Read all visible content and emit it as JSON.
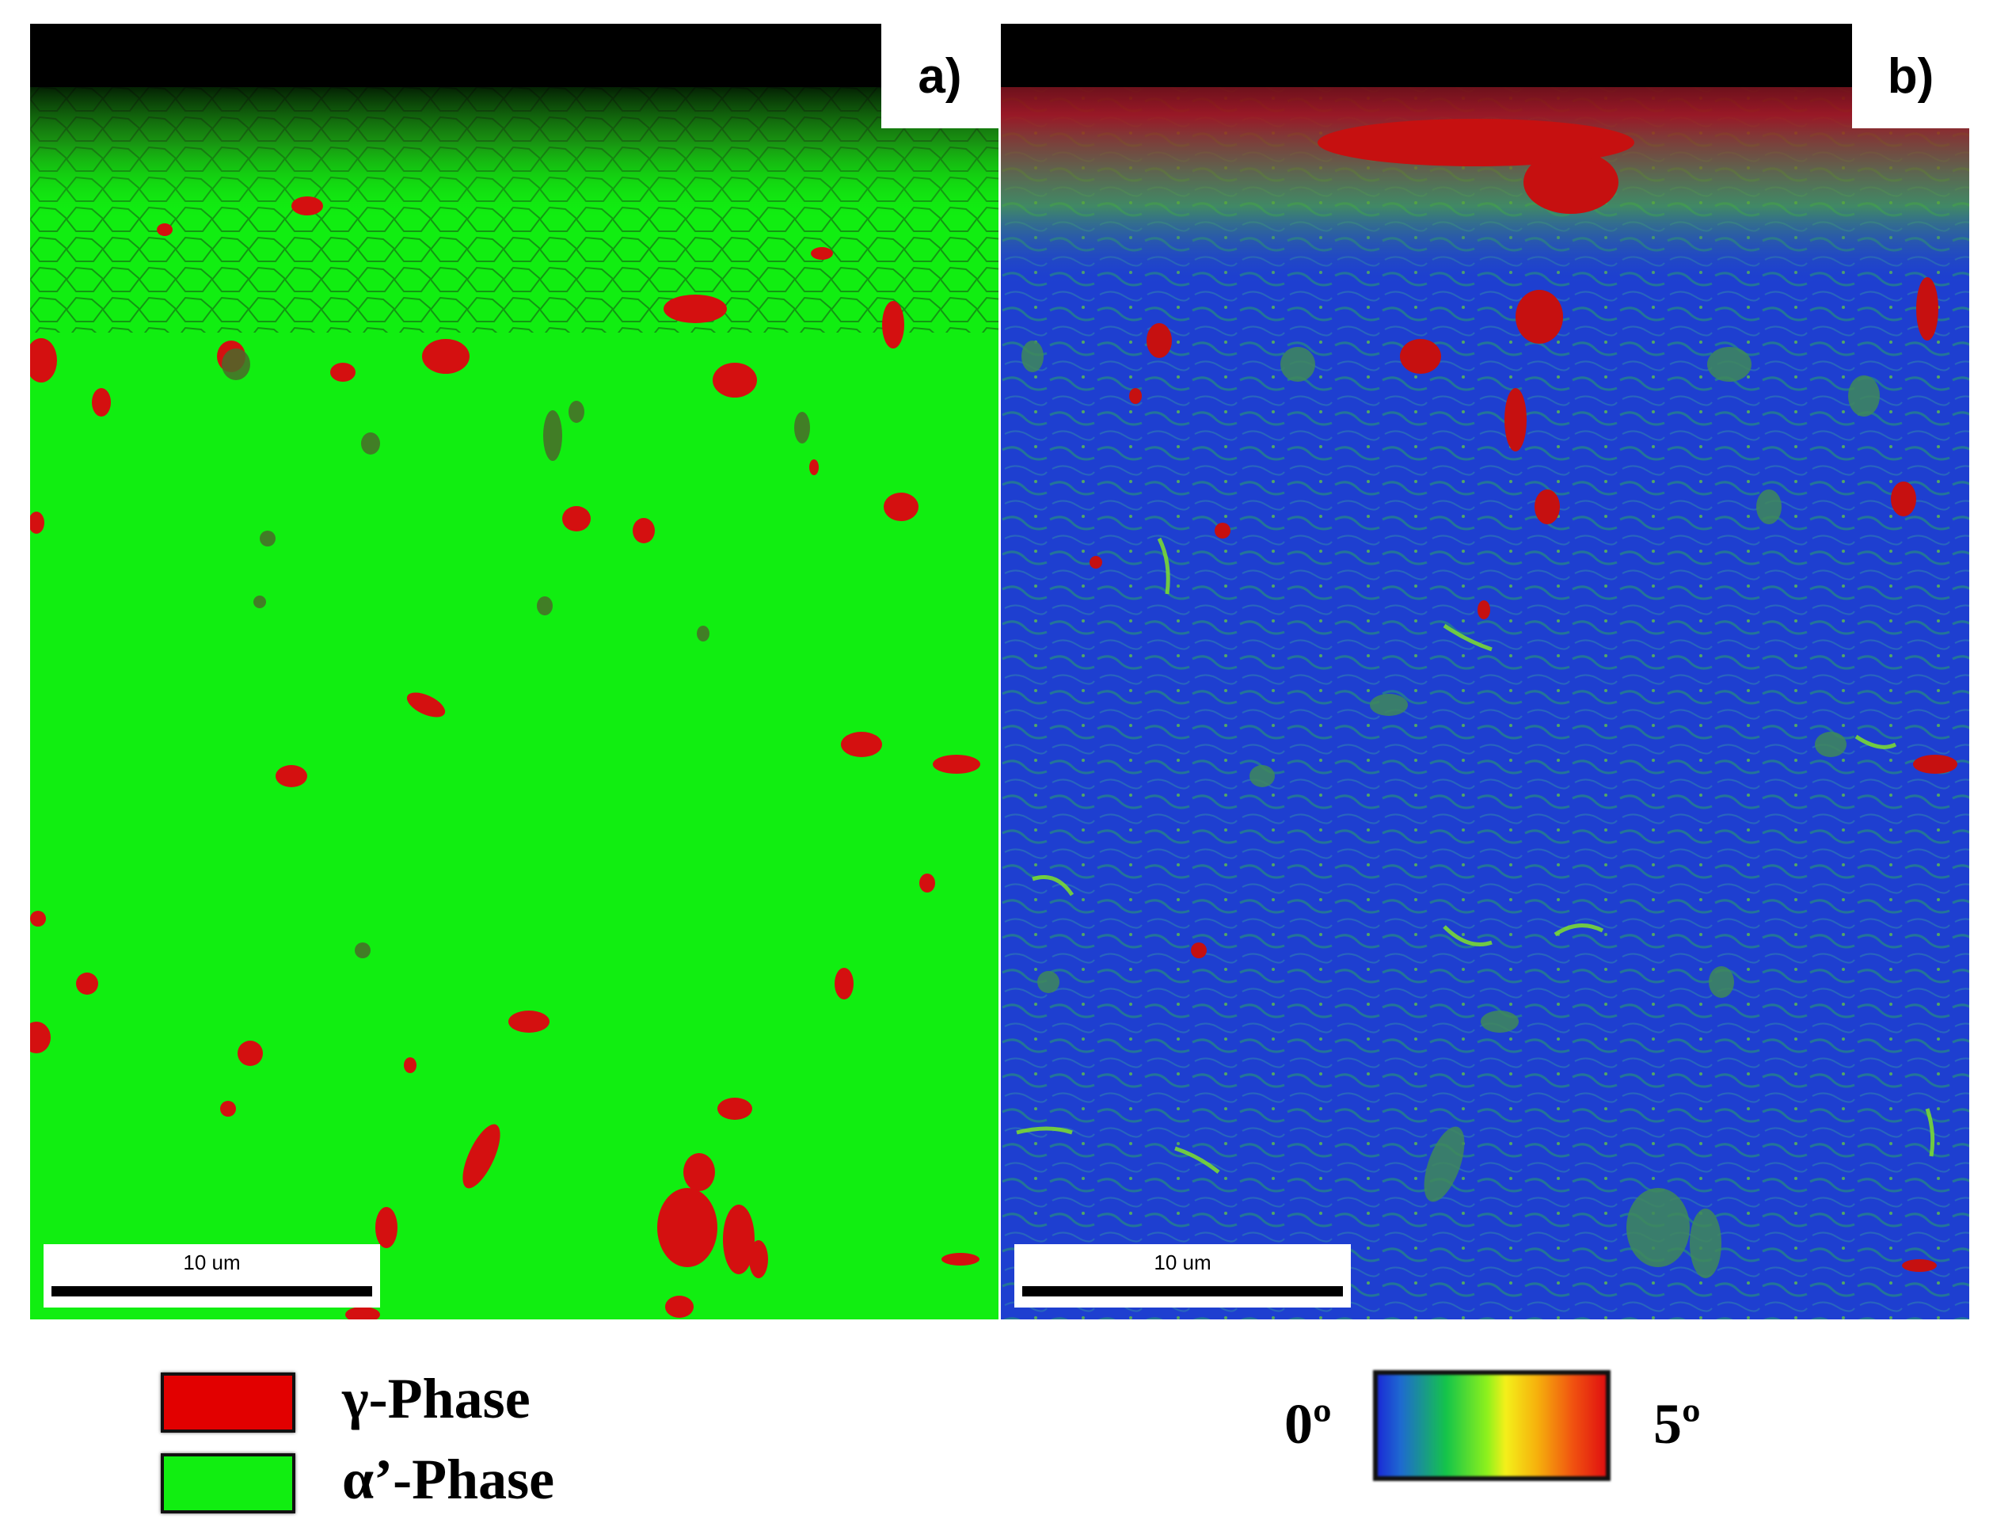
{
  "panel_a": {
    "label": "a)",
    "scalebar": "10 um"
  },
  "panel_b": {
    "label": "b)",
    "scalebar": "10 um"
  },
  "legend": {
    "items": [
      {
        "label": "γ-Phase",
        "color": "#e20000"
      },
      {
        "label": "α’-Phase",
        "color": "#11ee11"
      }
    ]
  },
  "colorbar": {
    "min_label": "0º",
    "max_label": "5º",
    "colors": [
      "#1a2bd6",
      "#14c44a",
      "#f4f01a",
      "#f05010",
      "#e01010"
    ]
  }
}
